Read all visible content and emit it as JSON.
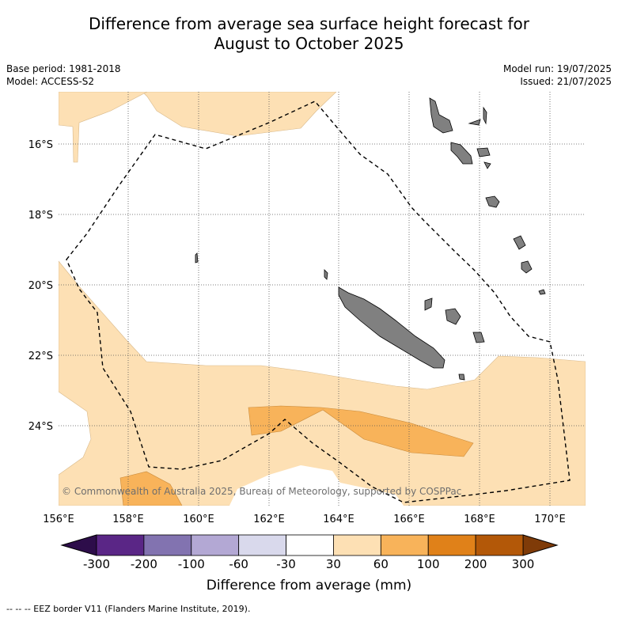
{
  "title_line1": "Difference from average sea surface height forecast for",
  "title_line2": "August to October 2025",
  "meta": {
    "base_period": "Base period: 1981-2018",
    "model": "Model: ACCESS-S2",
    "model_run": "Model run: 19/07/2025",
    "issued": "Issued: 21/07/2025"
  },
  "map": {
    "lon_labels": [
      "156°E",
      "158°E",
      "160°E",
      "162°E",
      "164°E",
      "166°E",
      "168°E",
      "170°E"
    ],
    "lat_labels": [
      "16°S",
      "18°S",
      "20°S",
      "22°S",
      "24°S"
    ],
    "credit": "© Commonwealth of Australia 2025, Bureau of Meteorology, supported by COSPPac"
  },
  "colorbar": {
    "ticks": [
      "-300",
      "-200",
      "-100",
      "-60",
      "-30",
      "30",
      "60",
      "100",
      "200",
      "300"
    ],
    "colors": [
      "#5a2686",
      "#8273b0",
      "#b3a8d4",
      "#d9d9ec",
      "#ffffff",
      "#fde0b4",
      "#f8b35a",
      "#e08119",
      "#b35808"
    ],
    "under_color": "#2d0d4a",
    "over_color": "#7f3b08",
    "label": "Difference from average (mm)"
  },
  "legend_footer": "-- -- -- EEZ border V11 (Flanders Marine Institute, 2019).",
  "land_color": "#808080"
}
